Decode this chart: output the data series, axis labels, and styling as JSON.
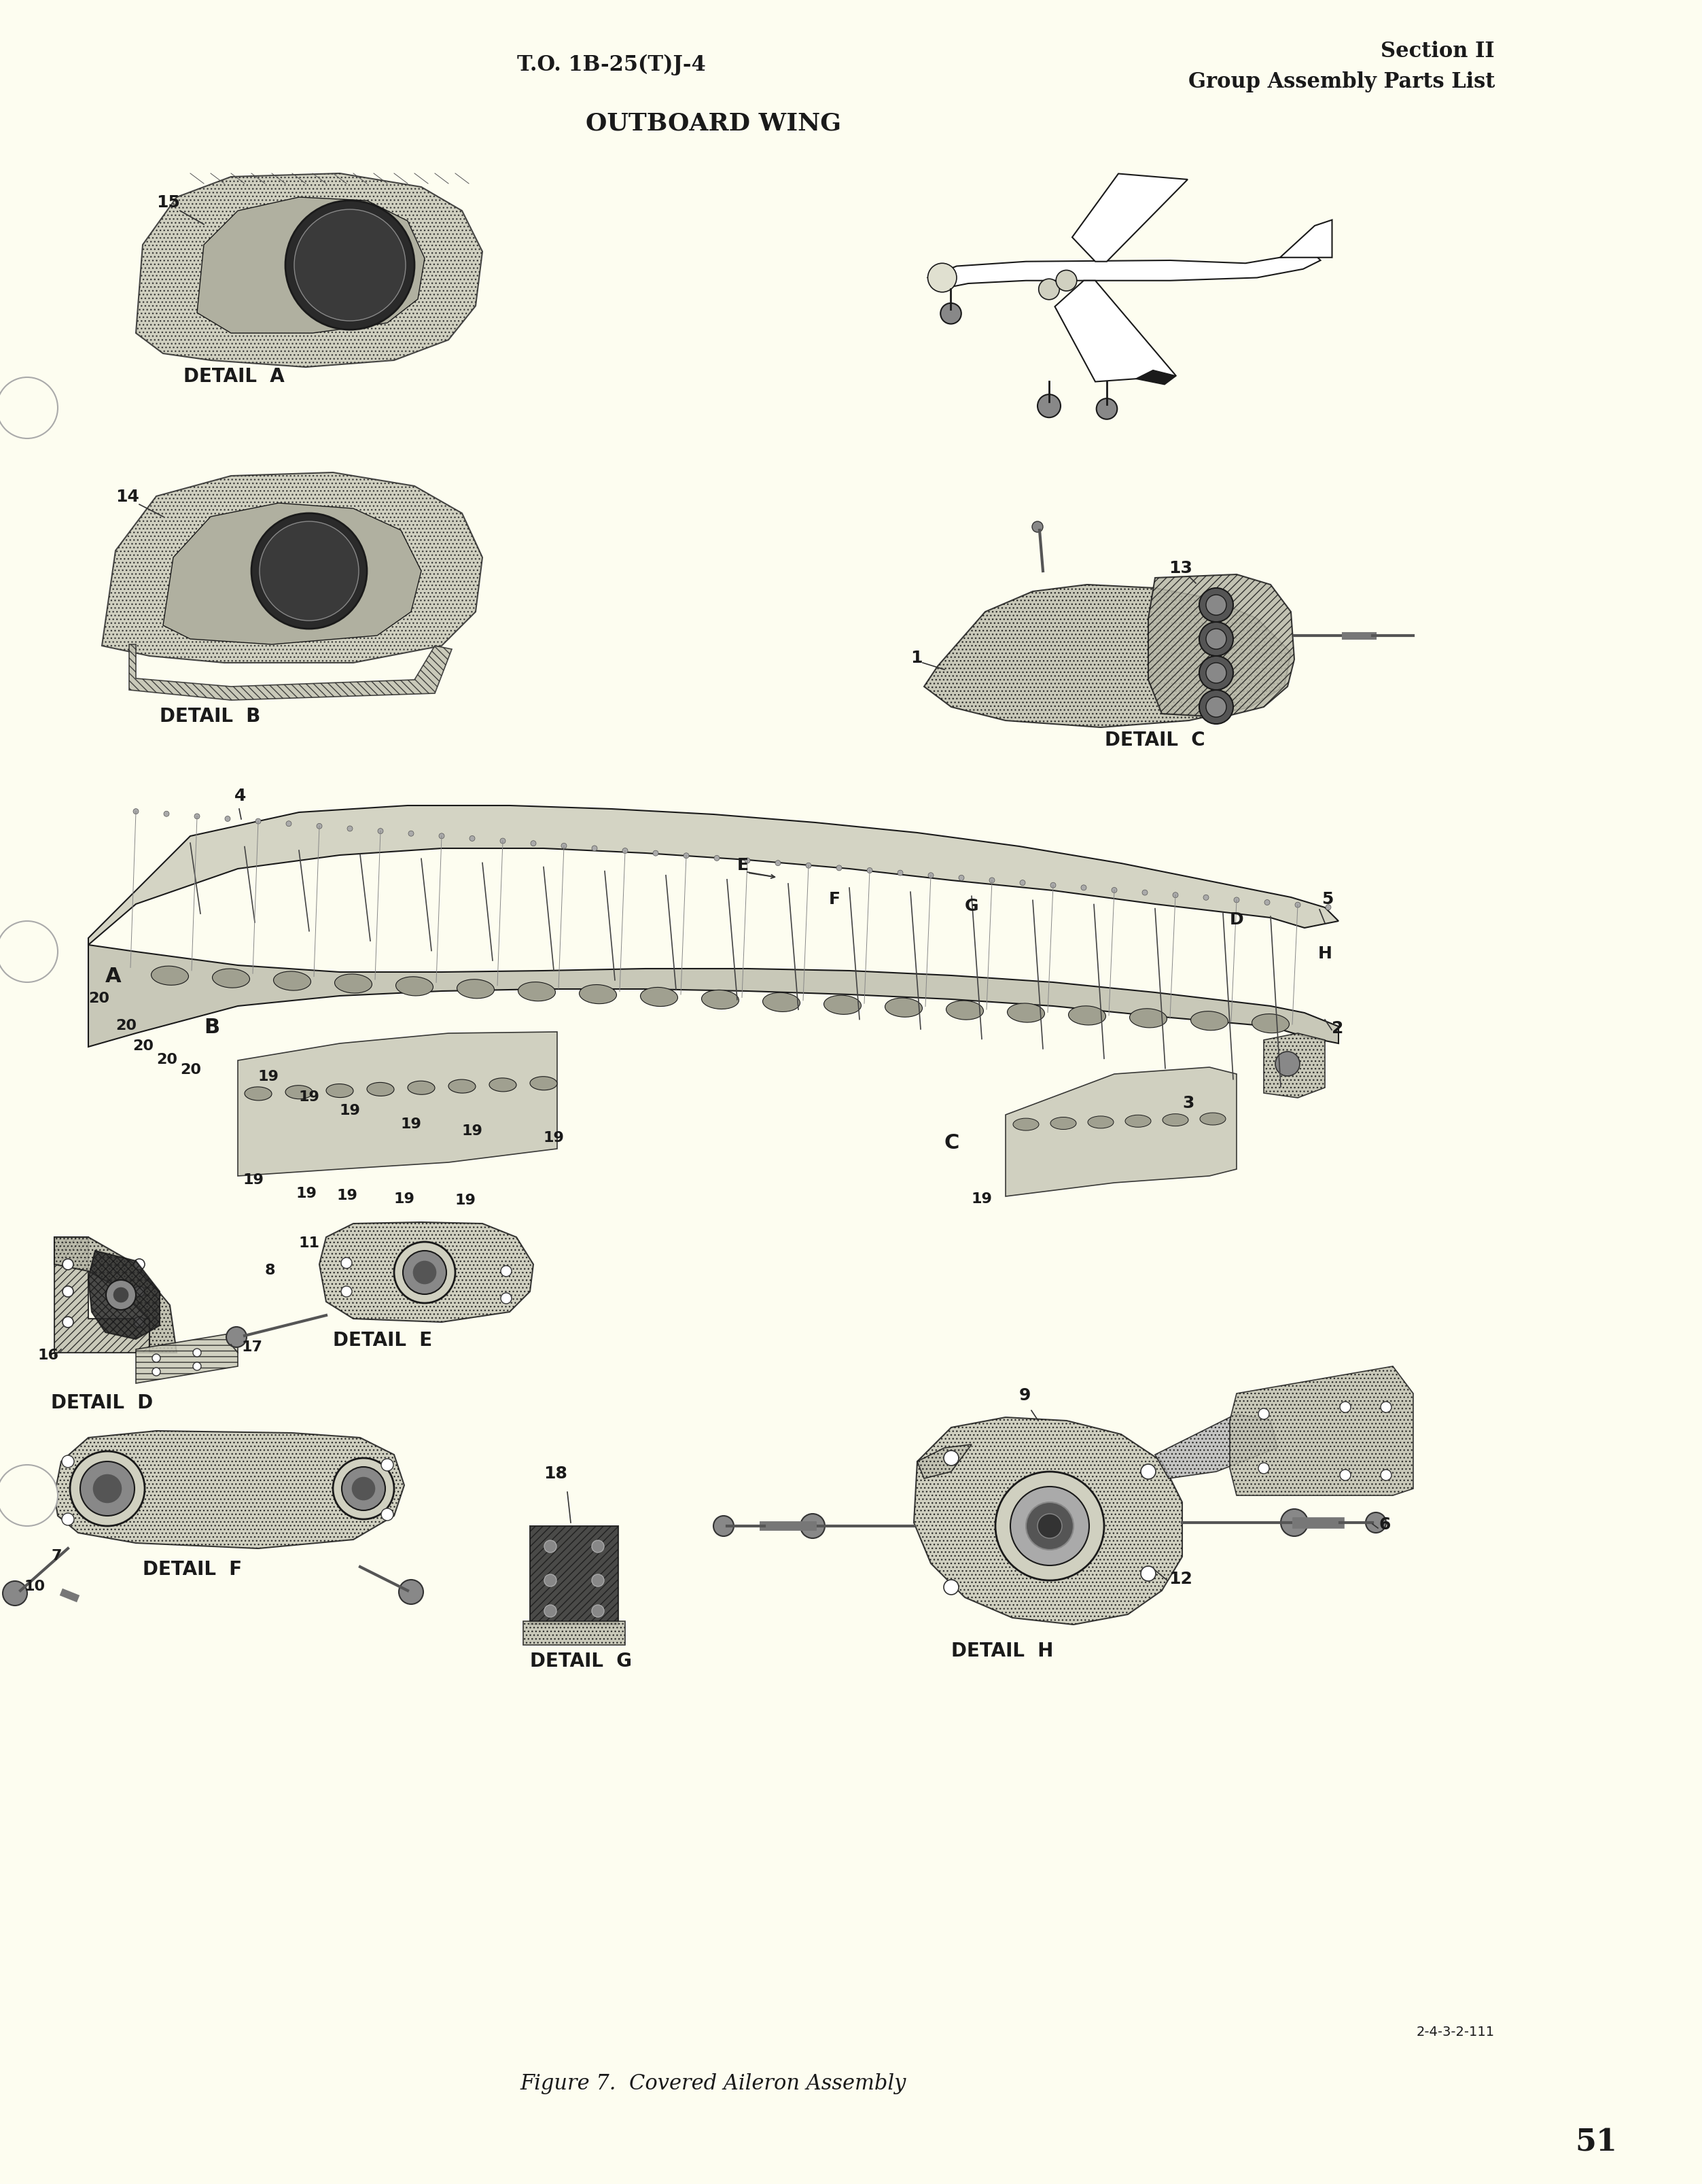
{
  "page_bg_color": "#FFFFF0",
  "paper_color": "#FDFDF0",
  "text_color": "#1a1a1a",
  "header_left": "T.O. 1B-25(T)J-4",
  "header_right_line1": "Section II",
  "header_right_line2": "Group Assembly Parts List",
  "title": "OUTBOARD WING",
  "figure_caption": "Figure 7.  Covered Aileron Assembly",
  "page_number": "51",
  "doc_number": "2-4-3-2-111",
  "detail_labels": [
    "DETAIL  A",
    "DETAIL  B",
    "DETAIL  C",
    "DETAIL  D",
    "DETAIL  E",
    "DETAIL  F",
    "DETAIL  G",
    "DETAIL  H"
  ],
  "part_numbers": [
    "1",
    "2",
    "3",
    "4",
    "5",
    "6",
    "7",
    "8",
    "9",
    "10",
    "11",
    "12",
    "13",
    "14",
    "15",
    "16",
    "17",
    "18",
    "19",
    "20"
  ],
  "callout_letters": [
    "A",
    "B",
    "C",
    "D",
    "E",
    "F",
    "G",
    "H"
  ]
}
